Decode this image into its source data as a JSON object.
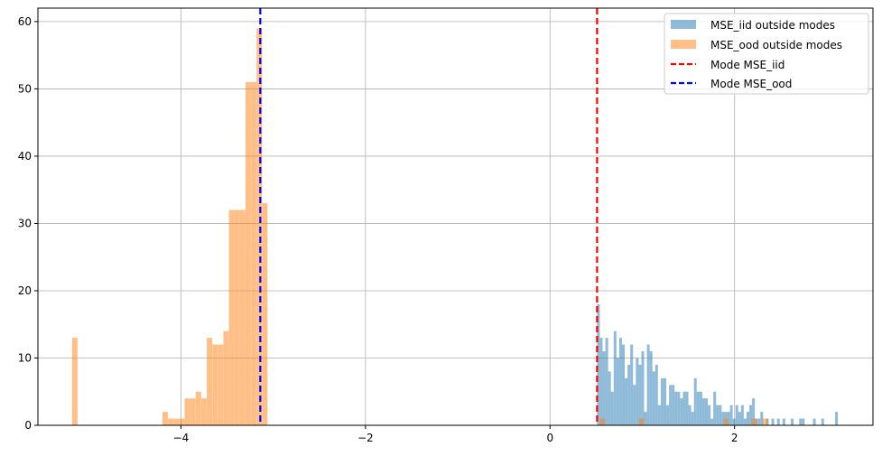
{
  "chart_data": {
    "type": "bar",
    "title": "",
    "xlabel": "",
    "ylabel": "",
    "xlim": [
      -5.55,
      3.5
    ],
    "ylim": [
      0,
      62
    ],
    "xticks": [
      -4,
      -2,
      0,
      2
    ],
    "xtick_labels": [
      "−4",
      "−2",
      "0",
      "2"
    ],
    "yticks": [
      0,
      10,
      20,
      30,
      40,
      50,
      60
    ],
    "ytick_labels": [
      "0",
      "10",
      "20",
      "30",
      "40",
      "50",
      "60"
    ],
    "grid": true,
    "legend_position": "top-right",
    "series": [
      {
        "name": "MSE_iid outside modes",
        "kind": "histogram",
        "color": "#1f77b4",
        "alpha": 0.5,
        "bin_width": 0.0296,
        "bins": [
          [
            0.51,
            18
          ],
          [
            0.54,
            13
          ],
          [
            0.57,
            11
          ],
          [
            0.6,
            13
          ],
          [
            0.63,
            8
          ],
          [
            0.66,
            5
          ],
          [
            0.69,
            14
          ],
          [
            0.72,
            10
          ],
          [
            0.75,
            13
          ],
          [
            0.78,
            12
          ],
          [
            0.81,
            7
          ],
          [
            0.84,
            9
          ],
          [
            0.87,
            12
          ],
          [
            0.9,
            6
          ],
          [
            0.93,
            10
          ],
          [
            0.96,
            9
          ],
          [
            0.99,
            11
          ],
          [
            1.02,
            2
          ],
          [
            1.05,
            12
          ],
          [
            1.08,
            11
          ],
          [
            1.11,
            8
          ],
          [
            1.14,
            9
          ],
          [
            1.17,
            3
          ],
          [
            1.2,
            7
          ],
          [
            1.23,
            7
          ],
          [
            1.26,
            3
          ],
          [
            1.29,
            6
          ],
          [
            1.32,
            6
          ],
          [
            1.35,
            5
          ],
          [
            1.38,
            5
          ],
          [
            1.41,
            4
          ],
          [
            1.44,
            5
          ],
          [
            1.47,
            5
          ],
          [
            1.5,
            3
          ],
          [
            1.53,
            2
          ],
          [
            1.56,
            7
          ],
          [
            1.59,
            5
          ],
          [
            1.62,
            5
          ],
          [
            1.65,
            4
          ],
          [
            1.68,
            4
          ],
          [
            1.71,
            3
          ],
          [
            1.74,
            1
          ],
          [
            1.77,
            5
          ],
          [
            1.8,
            3
          ],
          [
            1.83,
            3
          ],
          [
            1.86,
            2
          ],
          [
            1.89,
            2
          ],
          [
            1.92,
            2
          ],
          [
            1.95,
            3
          ],
          [
            1.98,
            1
          ],
          [
            2.01,
            3
          ],
          [
            2.04,
            2
          ],
          [
            2.07,
            3
          ],
          [
            2.1,
            1
          ],
          [
            2.13,
            2
          ],
          [
            2.16,
            3
          ],
          [
            2.19,
            4
          ],
          [
            2.22,
            1
          ],
          [
            2.25,
            1
          ],
          [
            2.28,
            2
          ],
          [
            2.34,
            1
          ],
          [
            2.4,
            1
          ],
          [
            2.46,
            1
          ],
          [
            2.52,
            1
          ],
          [
            2.61,
            1
          ],
          [
            2.7,
            1
          ],
          [
            2.73,
            1
          ],
          [
            2.85,
            1
          ],
          [
            2.94,
            1
          ],
          [
            3.09,
            2
          ]
        ]
      },
      {
        "name": "MSE_ood outside modes",
        "kind": "histogram",
        "color": "#ff7f0e",
        "alpha": 0.5,
        "bin_width": 0.0586,
        "bins": [
          [
            -5.18,
            13
          ],
          [
            -4.2,
            2
          ],
          [
            -4.14,
            1
          ],
          [
            -4.08,
            1
          ],
          [
            -4.02,
            1
          ],
          [
            -3.96,
            4
          ],
          [
            -3.9,
            4
          ],
          [
            -3.84,
            5
          ],
          [
            -3.78,
            4
          ],
          [
            -3.72,
            13
          ],
          [
            -3.66,
            12
          ],
          [
            -3.6,
            12
          ],
          [
            -3.54,
            14
          ],
          [
            -3.48,
            32
          ],
          [
            -3.42,
            32
          ],
          [
            -3.36,
            32
          ],
          [
            -3.3,
            51
          ],
          [
            -3.24,
            51
          ],
          [
            -3.18,
            59
          ],
          [
            -3.12,
            33
          ],
          [
            0.54,
            1
          ],
          [
            0.96,
            1
          ],
          [
            1.88,
            1
          ],
          [
            2.18,
            1
          ],
          [
            2.3,
            1
          ]
        ]
      },
      {
        "name": "Mode MSE_iid",
        "kind": "vline",
        "color": "#ff0000",
        "x": 0.51
      },
      {
        "name": "Mode MSE_ood",
        "kind": "vline",
        "color": "#0000ff",
        "x": -3.14
      }
    ]
  }
}
